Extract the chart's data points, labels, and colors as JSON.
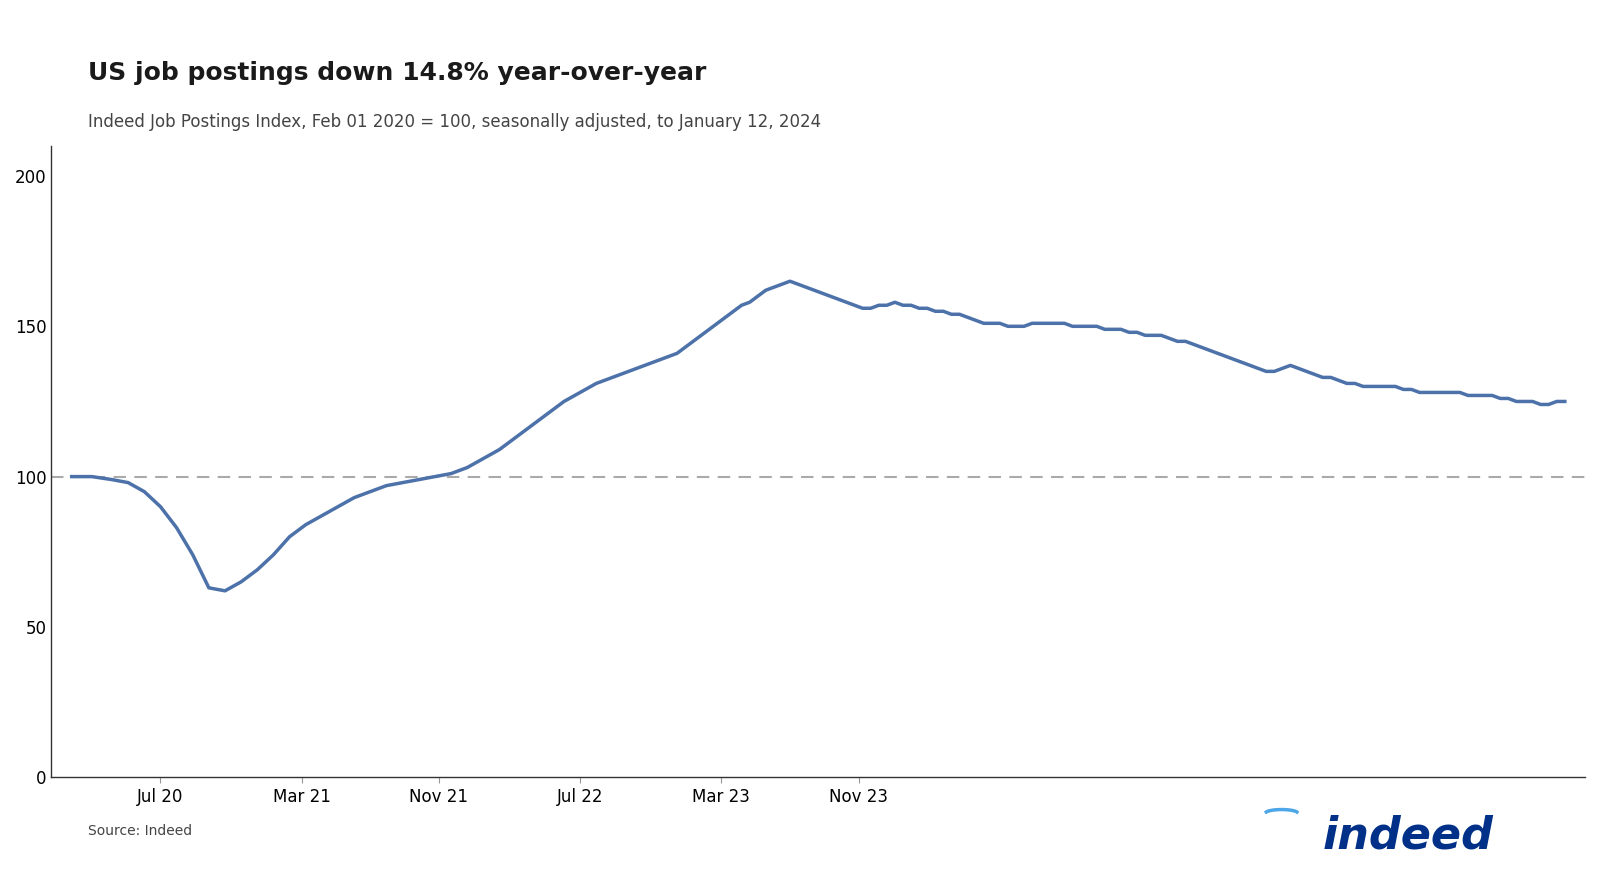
{
  "title": "US job postings down 14.8% year-over-year",
  "subtitle": "Indeed Job Postings Index, Feb 01 2020 = 100, seasonally adjusted, to January 12, 2024",
  "source": "Source: Indeed",
  "line_color": "#4d72aa",
  "line_width": 2.5,
  "dashed_line_y": 100,
  "dashed_line_color": "#aaaaaa",
  "background_color": "#ffffff",
  "ylim": [
    0,
    210
  ],
  "yticks": [
    0,
    50,
    100,
    150,
    200
  ],
  "title_fontsize": 18,
  "subtitle_fontsize": 12,
  "tick_fontsize": 12,
  "indeed_color": "#003087",
  "xtick_labels": [
    "Jul 20",
    "Mar 21",
    "Nov 21",
    "Jul 22",
    "Mar 23",
    "Nov 23"
  ],
  "data": [
    [
      0,
      100
    ],
    [
      5,
      100
    ],
    [
      10,
      99
    ],
    [
      14,
      98
    ],
    [
      18,
      95
    ],
    [
      22,
      90
    ],
    [
      26,
      83
    ],
    [
      30,
      74
    ],
    [
      34,
      63
    ],
    [
      38,
      62
    ],
    [
      42,
      65
    ],
    [
      46,
      69
    ],
    [
      50,
      74
    ],
    [
      54,
      80
    ],
    [
      58,
      84
    ],
    [
      62,
      87
    ],
    [
      66,
      90
    ],
    [
      70,
      93
    ],
    [
      74,
      95
    ],
    [
      78,
      97
    ],
    [
      82,
      98
    ],
    [
      86,
      99
    ],
    [
      90,
      100
    ],
    [
      94,
      101
    ],
    [
      98,
      103
    ],
    [
      102,
      106
    ],
    [
      106,
      109
    ],
    [
      110,
      113
    ],
    [
      114,
      117
    ],
    [
      118,
      121
    ],
    [
      122,
      125
    ],
    [
      126,
      128
    ],
    [
      130,
      131
    ],
    [
      134,
      133
    ],
    [
      138,
      135
    ],
    [
      142,
      137
    ],
    [
      146,
      139
    ],
    [
      148,
      140
    ],
    [
      150,
      141
    ],
    [
      152,
      143
    ],
    [
      154,
      145
    ],
    [
      156,
      147
    ],
    [
      158,
      149
    ],
    [
      160,
      151
    ],
    [
      162,
      153
    ],
    [
      164,
      155
    ],
    [
      166,
      157
    ],
    [
      168,
      158
    ],
    [
      170,
      160
    ],
    [
      172,
      162
    ],
    [
      174,
      163
    ],
    [
      176,
      164
    ],
    [
      178,
      165
    ],
    [
      180,
      164
    ],
    [
      182,
      163
    ],
    [
      184,
      162
    ],
    [
      186,
      161
    ],
    [
      188,
      160
    ],
    [
      190,
      159
    ],
    [
      192,
      158
    ],
    [
      194,
      157
    ],
    [
      196,
      156
    ],
    [
      198,
      156
    ],
    [
      200,
      157
    ],
    [
      202,
      157
    ],
    [
      204,
      158
    ],
    [
      206,
      157
    ],
    [
      208,
      157
    ],
    [
      210,
      156
    ],
    [
      212,
      156
    ],
    [
      214,
      155
    ],
    [
      216,
      155
    ],
    [
      218,
      154
    ],
    [
      220,
      154
    ],
    [
      222,
      153
    ],
    [
      224,
      152
    ],
    [
      226,
      151
    ],
    [
      228,
      151
    ],
    [
      230,
      151
    ],
    [
      232,
      150
    ],
    [
      234,
      150
    ],
    [
      236,
      150
    ],
    [
      238,
      151
    ],
    [
      240,
      151
    ],
    [
      242,
      151
    ],
    [
      244,
      151
    ],
    [
      246,
      151
    ],
    [
      248,
      150
    ],
    [
      250,
      150
    ],
    [
      252,
      150
    ],
    [
      254,
      150
    ],
    [
      256,
      149
    ],
    [
      258,
      149
    ],
    [
      260,
      149
    ],
    [
      262,
      148
    ],
    [
      264,
      148
    ],
    [
      266,
      147
    ],
    [
      268,
      147
    ],
    [
      270,
      147
    ],
    [
      272,
      146
    ],
    [
      274,
      145
    ],
    [
      276,
      145
    ],
    [
      278,
      144
    ],
    [
      280,
      143
    ],
    [
      282,
      142
    ],
    [
      284,
      141
    ],
    [
      286,
      140
    ],
    [
      288,
      139
    ],
    [
      290,
      138
    ],
    [
      292,
      137
    ],
    [
      294,
      136
    ],
    [
      296,
      135
    ],
    [
      298,
      135
    ],
    [
      300,
      136
    ],
    [
      302,
      137
    ],
    [
      304,
      136
    ],
    [
      306,
      135
    ],
    [
      308,
      134
    ],
    [
      310,
      133
    ],
    [
      312,
      133
    ],
    [
      314,
      132
    ],
    [
      316,
      131
    ],
    [
      318,
      131
    ],
    [
      320,
      130
    ],
    [
      322,
      130
    ],
    [
      324,
      130
    ],
    [
      326,
      130
    ],
    [
      328,
      130
    ],
    [
      330,
      129
    ],
    [
      332,
      129
    ],
    [
      334,
      128
    ],
    [
      336,
      128
    ],
    [
      338,
      128
    ],
    [
      340,
      128
    ],
    [
      342,
      128
    ],
    [
      344,
      128
    ],
    [
      346,
      127
    ],
    [
      348,
      127
    ],
    [
      350,
      127
    ],
    [
      352,
      127
    ],
    [
      354,
      126
    ],
    [
      356,
      126
    ],
    [
      358,
      125
    ],
    [
      360,
      125
    ],
    [
      362,
      125
    ],
    [
      364,
      124
    ],
    [
      366,
      124
    ],
    [
      368,
      125
    ],
    [
      370,
      125
    ]
  ]
}
